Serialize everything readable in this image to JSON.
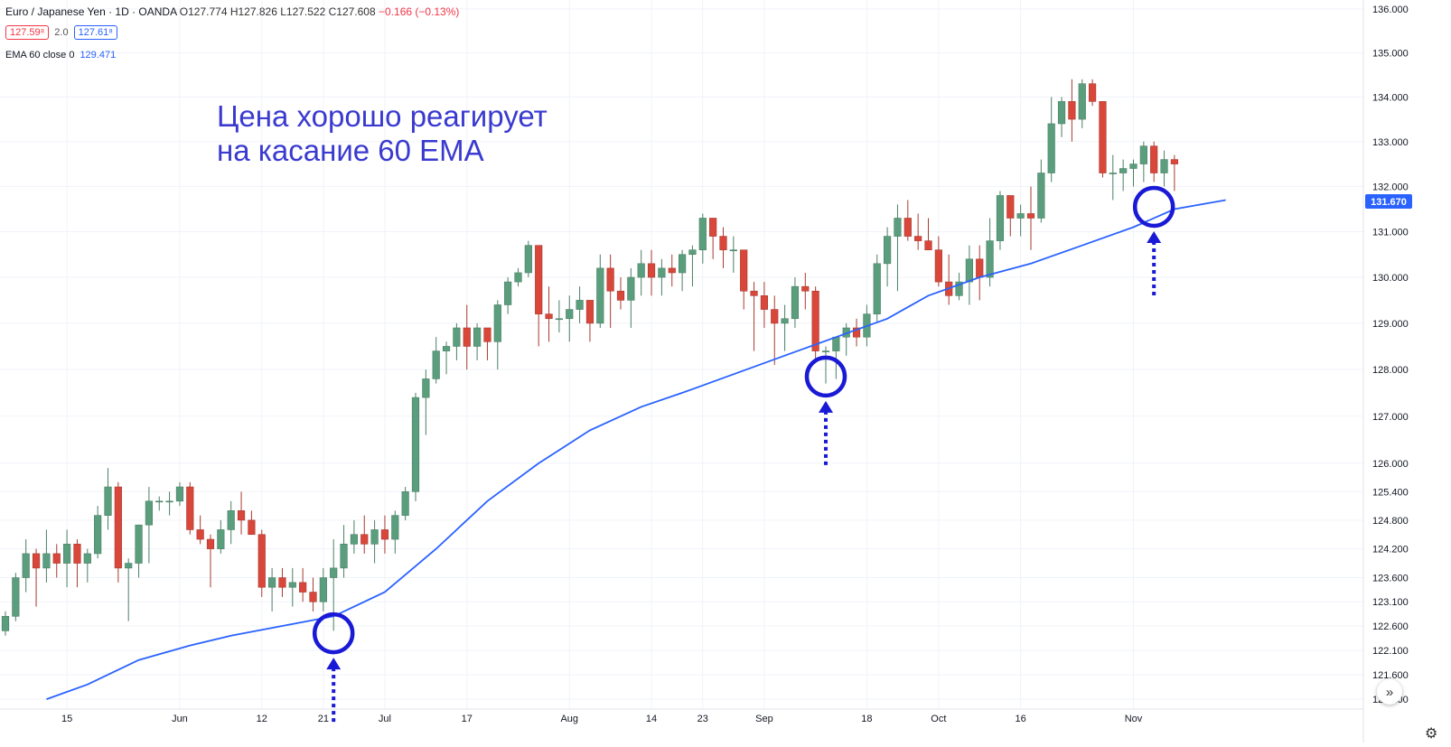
{
  "header": {
    "symbol": "Euro / Japanese Yen · 1D · OANDA",
    "ohlc": "O127.774 H127.826 L127.522 C127.608",
    "change": "−0.166 (−0.13%)",
    "sell_price": "127.59⁸",
    "spread": "2.0",
    "buy_price": "127.61⁸",
    "ema_label": "EMA 60 close 0",
    "ema_value": "129.471"
  },
  "annotation": {
    "line1": "Цена хорошо реагирует",
    "line2": "на касание 60 EMA"
  },
  "icons": {
    "scroll": "double-chevron-right-icon",
    "settings": "gear-icon"
  },
  "colors": {
    "up": "#5b9e7e",
    "down": "#d8473a",
    "ema": "#2962ff",
    "annotation": "#1a1ad6",
    "price_label": "#2962ff"
  },
  "chart_data": {
    "type": "candlestick",
    "ylim": [
      120.9,
      136.1
    ],
    "y_scale": "log",
    "y_ticks": [
      "121.100",
      "121.600",
      "122.100",
      "122.600",
      "123.100",
      "123.600",
      "124.200",
      "124.800",
      "125.400",
      "126.000",
      "127.000",
      "128.000",
      "129.000",
      "130.000",
      "131.000",
      "132.000",
      "133.000",
      "134.000",
      "135.000",
      "136.000"
    ],
    "x_ticks": [
      {
        "label": "15",
        "i": 6
      },
      {
        "label": "Jun",
        "i": 17
      },
      {
        "label": "12",
        "i": 25
      },
      {
        "label": "21",
        "i": 31
      },
      {
        "label": "Jul",
        "i": 37
      },
      {
        "label": "17",
        "i": 45
      },
      {
        "label": "Aug",
        "i": 55
      },
      {
        "label": "14",
        "i": 63
      },
      {
        "label": "23",
        "i": 68
      },
      {
        "label": "Sep",
        "i": 74
      },
      {
        "label": "18",
        "i": 84
      },
      {
        "label": "Oct",
        "i": 91
      },
      {
        "label": "16",
        "i": 99
      },
      {
        "label": "Nov",
        "i": 110
      }
    ],
    "last_price_label": "131.670",
    "last_price": 131.67,
    "candles": [
      [
        122.5,
        122.9,
        122.4,
        122.8
      ],
      [
        122.8,
        123.7,
        122.7,
        123.6
      ],
      [
        123.6,
        124.4,
        123.3,
        124.1
      ],
      [
        124.1,
        124.2,
        123.0,
        123.8
      ],
      [
        123.8,
        124.6,
        123.5,
        124.1
      ],
      [
        124.1,
        124.3,
        123.6,
        123.9
      ],
      [
        123.9,
        124.6,
        123.4,
        124.3
      ],
      [
        124.3,
        124.4,
        123.4,
        123.9
      ],
      [
        123.9,
        124.2,
        123.5,
        124.1
      ],
      [
        124.1,
        125.1,
        124.0,
        124.9
      ],
      [
        124.9,
        125.9,
        124.6,
        125.5
      ],
      [
        125.5,
        125.6,
        123.5,
        123.8
      ],
      [
        123.8,
        124.0,
        122.7,
        123.9
      ],
      [
        123.9,
        124.7,
        123.6,
        124.7
      ],
      [
        124.7,
        125.5,
        123.9,
        125.2
      ],
      [
        125.2,
        125.3,
        125.0,
        125.2
      ],
      [
        125.2,
        125.4,
        124.9,
        125.2
      ],
      [
        125.2,
        125.6,
        125.1,
        125.5
      ],
      [
        125.5,
        125.6,
        124.5,
        124.6
      ],
      [
        124.6,
        124.9,
        124.3,
        124.4
      ],
      [
        124.4,
        124.5,
        123.4,
        124.2
      ],
      [
        124.2,
        124.8,
        124.1,
        124.6
      ],
      [
        124.6,
        125.2,
        124.3,
        125.0
      ],
      [
        125.0,
        125.4,
        124.5,
        124.8
      ],
      [
        124.8,
        125.0,
        124.5,
        124.5
      ],
      [
        124.5,
        124.6,
        123.2,
        123.4
      ],
      [
        123.4,
        123.8,
        122.9,
        123.6
      ],
      [
        123.6,
        123.8,
        123.2,
        123.4
      ],
      [
        123.4,
        123.8,
        123.0,
        123.5
      ],
      [
        123.5,
        123.8,
        123.1,
        123.3
      ],
      [
        123.3,
        123.6,
        122.9,
        123.1
      ],
      [
        123.1,
        123.8,
        122.9,
        123.6
      ],
      [
        123.6,
        124.4,
        122.5,
        123.8
      ],
      [
        123.8,
        124.7,
        123.6,
        124.3
      ],
      [
        124.3,
        124.8,
        124.1,
        124.5
      ],
      [
        124.5,
        124.9,
        124.1,
        124.3
      ],
      [
        124.3,
        124.8,
        123.9,
        124.6
      ],
      [
        124.6,
        124.9,
        124.1,
        124.4
      ],
      [
        124.4,
        125.0,
        124.1,
        124.9
      ],
      [
        124.9,
        125.5,
        124.8,
        125.4
      ],
      [
        125.4,
        127.5,
        125.2,
        127.4
      ],
      [
        127.4,
        128.0,
        126.6,
        127.8
      ],
      [
        127.8,
        128.7,
        127.7,
        128.4
      ],
      [
        128.4,
        128.6,
        127.9,
        128.5
      ],
      [
        128.5,
        129.0,
        128.2,
        128.9
      ],
      [
        128.9,
        129.4,
        128.0,
        128.5
      ],
      [
        128.5,
        129.0,
        128.2,
        128.9
      ],
      [
        128.9,
        128.9,
        128.2,
        128.6
      ],
      [
        128.6,
        129.5,
        128.0,
        129.4
      ],
      [
        129.4,
        130.0,
        129.2,
        129.9
      ],
      [
        129.9,
        130.2,
        129.8,
        130.1
      ],
      [
        130.1,
        130.8,
        130.0,
        130.7
      ],
      [
        130.7,
        130.7,
        128.5,
        129.2
      ],
      [
        129.2,
        129.8,
        128.6,
        129.1
      ],
      [
        129.1,
        129.5,
        128.8,
        129.1
      ],
      [
        129.1,
        129.6,
        128.6,
        129.3
      ],
      [
        129.3,
        129.8,
        129.0,
        129.5
      ],
      [
        129.5,
        129.5,
        128.6,
        129.0
      ],
      [
        129.0,
        130.5,
        128.9,
        130.2
      ],
      [
        130.2,
        130.5,
        128.9,
        129.7
      ],
      [
        129.7,
        130.0,
        129.3,
        129.5
      ],
      [
        129.5,
        130.2,
        128.9,
        130.0
      ],
      [
        130.0,
        130.6,
        129.6,
        130.3
      ],
      [
        130.3,
        130.6,
        129.6,
        130.0
      ],
      [
        130.0,
        130.4,
        129.6,
        130.2
      ],
      [
        130.2,
        130.5,
        129.8,
        130.1
      ],
      [
        130.1,
        130.6,
        129.7,
        130.5
      ],
      [
        130.5,
        130.7,
        129.8,
        130.6
      ],
      [
        130.6,
        131.4,
        130.3,
        131.3
      ],
      [
        131.3,
        131.3,
        130.4,
        130.9
      ],
      [
        130.9,
        131.1,
        130.2,
        130.6
      ],
      [
        130.6,
        130.9,
        130.1,
        130.6
      ],
      [
        130.6,
        130.6,
        129.3,
        129.7
      ],
      [
        129.7,
        129.9,
        128.4,
        129.6
      ],
      [
        129.6,
        129.9,
        128.9,
        129.3
      ],
      [
        129.3,
        129.6,
        128.1,
        129.0
      ],
      [
        129.0,
        129.4,
        128.4,
        129.1
      ],
      [
        129.1,
        130.0,
        128.9,
        129.8
      ],
      [
        129.8,
        130.1,
        129.3,
        129.7
      ],
      [
        129.7,
        129.8,
        128.2,
        128.4
      ],
      [
        128.4,
        128.5,
        127.7,
        128.4
      ],
      [
        128.4,
        128.6,
        127.8,
        128.7
      ],
      [
        128.7,
        129.0,
        128.3,
        128.9
      ],
      [
        128.9,
        129.1,
        128.5,
        128.7
      ],
      [
        128.7,
        129.4,
        128.5,
        129.2
      ],
      [
        129.2,
        130.5,
        129.0,
        130.3
      ],
      [
        130.3,
        131.1,
        129.8,
        130.9
      ],
      [
        130.9,
        131.6,
        129.7,
        131.3
      ],
      [
        131.3,
        131.7,
        130.8,
        130.9
      ],
      [
        130.9,
        131.4,
        130.6,
        130.8
      ],
      [
        130.8,
        131.3,
        130.6,
        130.6
      ],
      [
        130.6,
        130.9,
        129.8,
        129.9
      ],
      [
        129.9,
        130.5,
        129.4,
        129.6
      ],
      [
        129.6,
        130.1,
        129.5,
        129.9
      ],
      [
        129.9,
        130.7,
        129.4,
        130.4
      ],
      [
        130.4,
        130.7,
        129.5,
        130.0
      ],
      [
        130.0,
        131.3,
        129.8,
        130.8
      ],
      [
        130.8,
        131.9,
        130.6,
        131.8
      ],
      [
        131.8,
        131.8,
        130.9,
        131.3
      ],
      [
        131.3,
        131.6,
        130.9,
        131.4
      ],
      [
        131.4,
        132.0,
        130.6,
        131.3
      ],
      [
        131.3,
        132.6,
        131.2,
        132.3
      ],
      [
        132.3,
        134.0,
        132.1,
        133.4
      ],
      [
        133.4,
        134.0,
        133.1,
        133.9
      ],
      [
        133.9,
        134.4,
        133.0,
        133.5
      ],
      [
        133.5,
        134.4,
        133.3,
        134.3
      ],
      [
        134.3,
        134.4,
        133.8,
        133.9
      ],
      [
        133.9,
        133.9,
        132.2,
        132.3
      ],
      [
        132.3,
        132.7,
        131.7,
        132.3
      ],
      [
        132.3,
        132.6,
        131.9,
        132.4
      ],
      [
        132.4,
        132.6,
        132.0,
        132.5
      ],
      [
        132.5,
        133.0,
        132.1,
        132.9
      ],
      [
        132.9,
        133.0,
        132.1,
        132.3
      ],
      [
        132.3,
        132.8,
        132.0,
        132.6
      ],
      [
        132.6,
        132.7,
        131.9,
        132.5
      ]
    ],
    "ema": [
      [
        4,
        121.1
      ],
      [
        8,
        121.4
      ],
      [
        13,
        121.9
      ],
      [
        18,
        122.2
      ],
      [
        22,
        122.4
      ],
      [
        27,
        122.6
      ],
      [
        32,
        122.8
      ],
      [
        37,
        123.3
      ],
      [
        42,
        124.2
      ],
      [
        47,
        125.2
      ],
      [
        52,
        126.0
      ],
      [
        57,
        126.7
      ],
      [
        62,
        127.2
      ],
      [
        66,
        127.5
      ],
      [
        71,
        127.9
      ],
      [
        76,
        128.3
      ],
      [
        81,
        128.7
      ],
      [
        86,
        129.1
      ],
      [
        90,
        129.6
      ],
      [
        95,
        130.0
      ],
      [
        100,
        130.3
      ],
      [
        105,
        130.7
      ],
      [
        110,
        131.1
      ],
      [
        114,
        131.5
      ],
      [
        119,
        131.7
      ]
    ],
    "highlights": [
      {
        "i": 32,
        "price": 122.45
      },
      {
        "i": 80,
        "price": 127.85
      },
      {
        "i": 112,
        "price": 131.55
      }
    ]
  }
}
